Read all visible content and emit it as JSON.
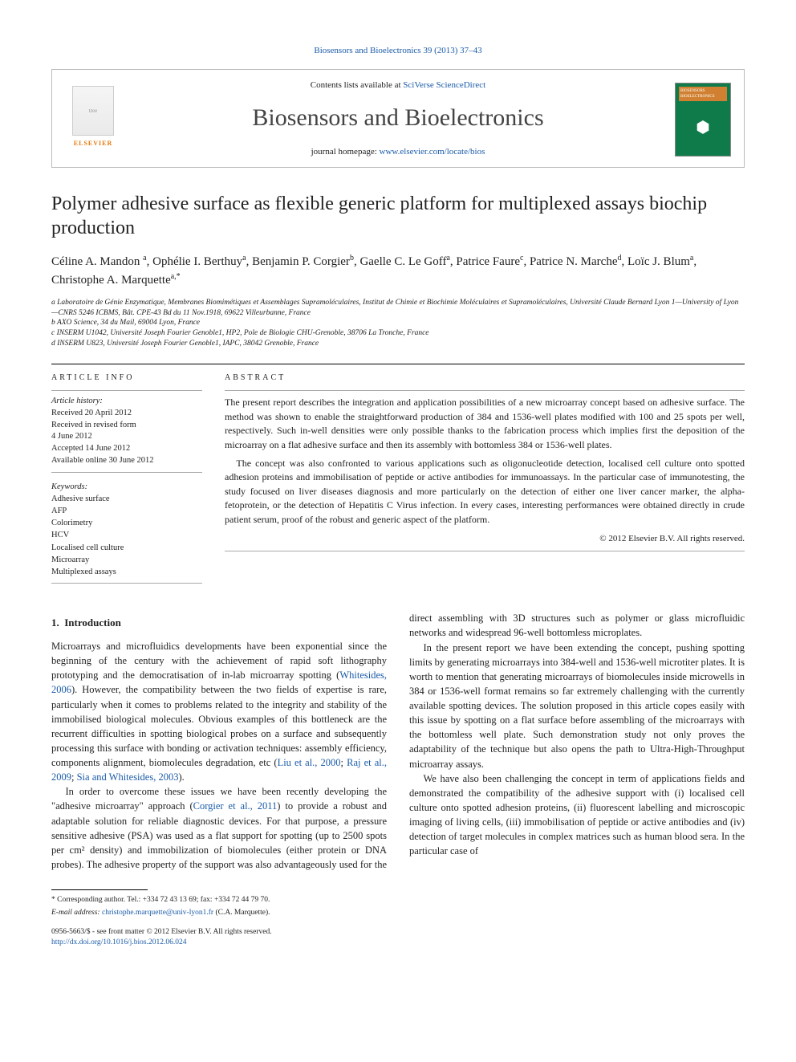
{
  "citation": {
    "journal": "Biosensors and Bioelectronics",
    "vol_pages": "39 (2013) 37–43"
  },
  "header": {
    "contents_prefix": "Contents lists available at ",
    "contents_link": "SciVerse ScienceDirect",
    "journal_title": "Biosensors and Bioelectronics",
    "homepage_prefix": "journal homepage: ",
    "homepage_link": "www.elsevier.com/locate/bios",
    "publisher_logo_text": "ELSEVIER",
    "cover_label": "BIOSENSORS BIOELECTRONICS"
  },
  "article": {
    "title": "Polymer adhesive surface as flexible generic platform for multiplexed assays biochip production",
    "authors_html": "Céline A. Mandon <sup>a</sup>, Ophélie I. Berthuy<sup>a</sup>, Benjamin P. Corgier<sup>b</sup>, Gaelle C. Le Goff<sup>a</sup>, Patrice Faure<sup>c</sup>, Patrice N. Marche<sup>d</sup>, Loïc J. Blum<sup>a</sup>, Christophe A. Marquette<sup>a,*</sup>",
    "affiliations": [
      "a Laboratoire de Génie Enzymatique, Membranes Biomimétiques et Assemblages Supramoléculaires, Institut de Chimie et Biochimie Moléculaires et Supramoléculaires, Université Claude Bernard Lyon 1—University of Lyon—CNRS 5246 ICBMS, Bât. CPE-43 Bd du 11 Nov.1918, 69622 Villeurbanne, France",
      "b AXO Science, 34 du Mail, 69004 Lyon, France",
      "c INSERM U1042, Université Joseph Fourier Genoble1, HP2, Pole de Biologie CHU-Grenoble, 38706 La Tronche, France",
      "d INSERM U823, Université Joseph Fourier Genoble1, IAPC, 38042 Grenoble, France"
    ]
  },
  "info": {
    "label": "ARTICLE INFO",
    "history_title": "Article history:",
    "history": [
      "Received 20 April 2012",
      "Received in revised form",
      "4 June 2012",
      "Accepted 14 June 2012",
      "Available online 30 June 2012"
    ],
    "keywords_title": "Keywords:",
    "keywords": [
      "Adhesive surface",
      "AFP",
      "Colorimetry",
      "HCV",
      "Localised cell culture",
      "Microarray",
      "Multiplexed assays"
    ]
  },
  "abstract": {
    "label": "ABSTRACT",
    "paragraphs": [
      "The present report describes the integration and application possibilities of a new microarray concept based on adhesive surface. The method was shown to enable the straightforward production of 384 and 1536-well plates modified with 100 and 25 spots per well, respectively. Such in-well densities were only possible thanks to the fabrication process which implies first the deposition of the microarray on a flat adhesive surface and then its assembly with bottomless 384 or 1536-well plates.",
      "The concept was also confronted to various applications such as oligonucleotide detection, localised cell culture onto spotted adhesion proteins and immobilisation of peptide or active antibodies for immunoassays. In the particular case of immunotesting, the study focused on liver diseases diagnosis and more particularly on the detection of either one liver cancer marker, the alpha-fetoprotein, or the detection of Hepatitis C Virus infection. In every cases, interesting performances were obtained directly in crude patient serum, proof of the robust and generic aspect of the platform."
    ],
    "copyright": "© 2012 Elsevier B.V. All rights reserved."
  },
  "body": {
    "section_number": "1.",
    "section_title": "Introduction",
    "paragraphs": [
      "Microarrays and microfluidics developments have been exponential since the beginning of the century with the achievement of rapid soft lithography prototyping and the democratisation of in-lab microarray spotting (<a>Whitesides, 2006</a>). However, the compatibility between the two fields of expertise is rare, particularly when it comes to problems related to the integrity and stability of the immobilised biological molecules. Obvious examples of this bottleneck are the recurrent difficulties in spotting biological probes on a surface and subsequently processing this surface with bonding or activation techniques: assembly efficiency, components alignment, biomolecules degradation, etc (<a>Liu et al., 2000</a>; <a>Raj et al., 2009</a>; <a>Sia and Whitesides, 2003</a>).",
      "In order to overcome these issues we have been recently developing the \"adhesive microarray\" approach (<a>Corgier et al., 2011</a>) to provide a robust and adaptable solution for reliable diagnostic devices. For that purpose, a pressure sensitive adhesive (PSA) was used as a flat support for spotting (up to 2500 spots per cm² density) and immobilization of biomolecules (either protein or DNA probes). The adhesive property of the support was also advantageously used for the direct assembling with 3D structures such as polymer or glass microfluidic networks and widespread 96-well bottomless microplates.",
      "In the present report we have been extending the concept, pushing spotting limits by generating microarrays into 384-well and 1536-well microtiter plates. It is worth to mention that generating microarrays of biomolecules inside microwells in 384 or 1536-well format remains so far extremely challenging with the currently available spotting devices. The solution proposed in this article copes easily with this issue by spotting on a flat surface before assembling of the microarrays with the bottomless well plate. Such demonstration study not only proves the adaptability of the technique but also opens the path to Ultra-High-Throughput microarray assays.",
      "We have also been challenging the concept in term of applications fields and demonstrated the compatibility of the adhesive support with (i) localised cell culture onto spotted adhesion proteins, (ii) fluorescent labelling and microscopic imaging of living cells, (iii) immobilisation of peptide or active antibodies and (iv) detection of target molecules in complex matrices such as human blood sera. In the particular case of"
    ]
  },
  "footer": {
    "corr_label": "* Corresponding author. Tel.: +334 72 43 13 69; fax: +334 72 44 79 70.",
    "email_label": "E-mail address:",
    "email": "christophe.marquette@univ-lyon1.fr",
    "email_suffix": "(C.A. Marquette).",
    "issn_line": "0956-5663/$ - see front matter © 2012 Elsevier B.V. All rights reserved.",
    "doi_link": "http://dx.doi.org/10.1016/j.bios.2012.06.024"
  },
  "colors": {
    "link": "#1a5ba8",
    "elsevier_orange": "#e5780b",
    "cover_green": "#0f7a4a"
  }
}
